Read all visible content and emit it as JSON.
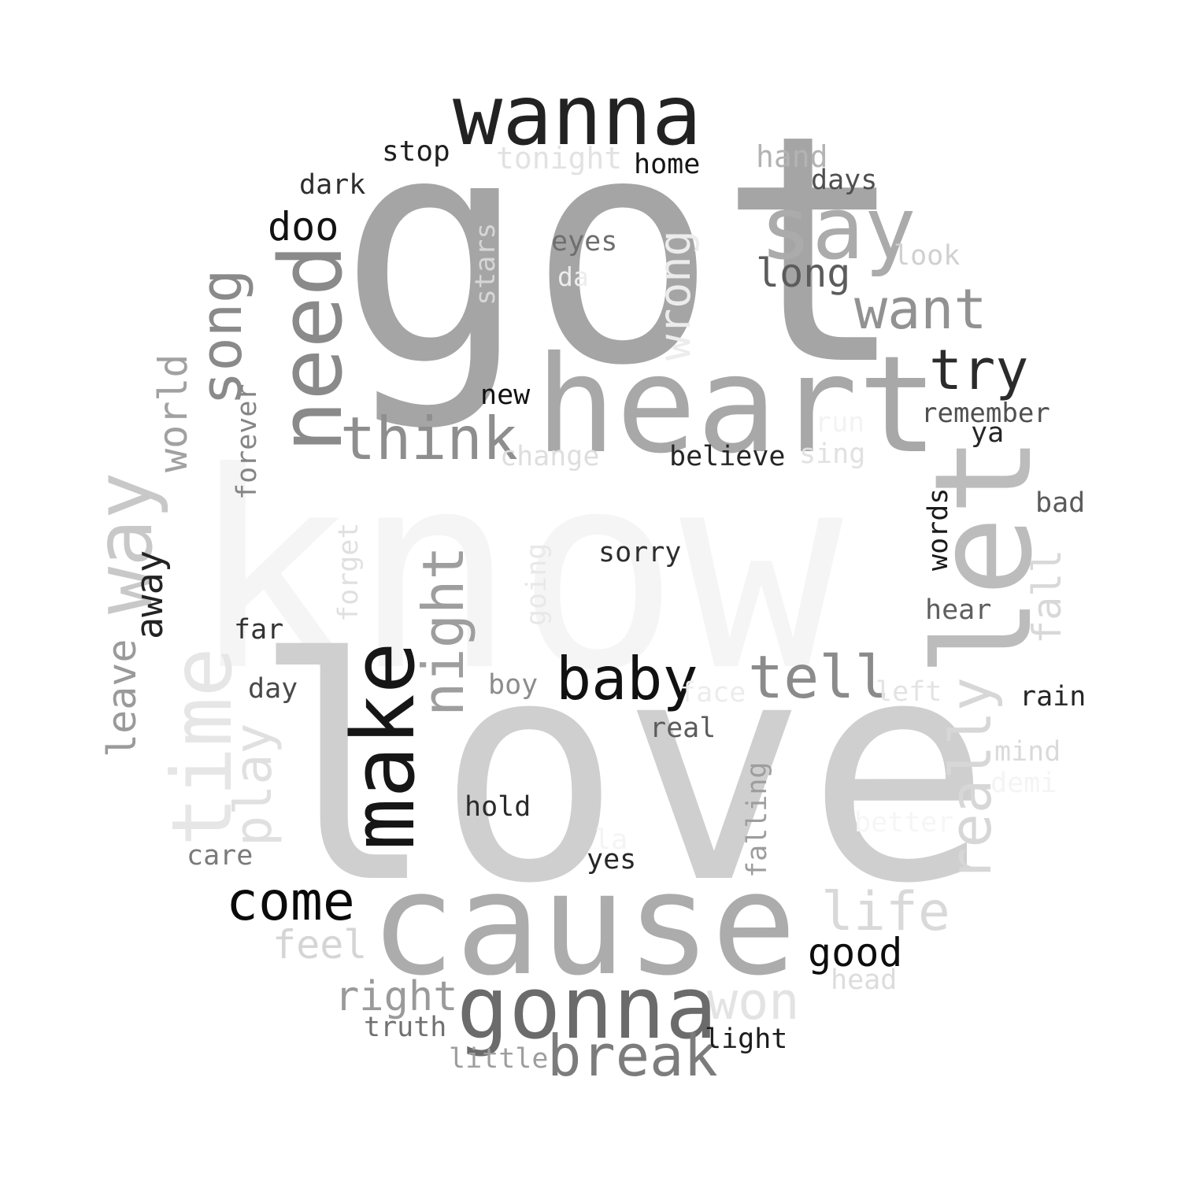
{
  "words": [
    {
      "text": "know",
      "color": "#f5f5f5",
      "vertical": false
    },
    {
      "text": "love",
      "color": "#cfcfcf",
      "vertical": false
    },
    {
      "text": "got",
      "color": "#a5a5a5",
      "vertical": false
    },
    {
      "text": "heart",
      "color": "#a8a8a8",
      "vertical": false
    },
    {
      "text": "cause",
      "color": "#acacac",
      "vertical": false
    },
    {
      "text": "let",
      "color": "#bcbcbc",
      "vertical": true
    },
    {
      "text": "wanna",
      "color": "#222222",
      "vertical": false
    },
    {
      "text": "say",
      "color": "#ababab",
      "vertical": false
    },
    {
      "text": "gonna",
      "color": "#6b6b6b",
      "vertical": false
    },
    {
      "text": "make",
      "color": "#161616",
      "vertical": true
    },
    {
      "text": "need",
      "color": "#8a8a8a",
      "vertical": true
    },
    {
      "text": "time",
      "color": "#e6e6e6",
      "vertical": true
    },
    {
      "text": "way",
      "color": "#c8c8c8",
      "vertical": true
    },
    {
      "text": "think",
      "color": "#8e8e8e",
      "vertical": false
    },
    {
      "text": "baby",
      "color": "#111111",
      "vertical": false
    },
    {
      "text": "tell",
      "color": "#8b8b8b",
      "vertical": false
    },
    {
      "text": "want",
      "color": "#929292",
      "vertical": false
    },
    {
      "text": "break",
      "color": "#7c7c7c",
      "vertical": false
    },
    {
      "text": "come",
      "color": "#0a0a0a",
      "vertical": false
    },
    {
      "text": "night",
      "color": "#9e9e9e",
      "vertical": true
    },
    {
      "text": "really",
      "color": "#d7d7d7",
      "vertical": true
    },
    {
      "text": "try",
      "color": "#2b2b2b",
      "vertical": false
    },
    {
      "text": "song",
      "color": "#8a8a8a",
      "vertical": true
    },
    {
      "text": "life",
      "color": "#d9d9d9",
      "vertical": false
    },
    {
      "text": "won",
      "color": "#e3e3e3",
      "vertical": false
    },
    {
      "text": "play",
      "color": "#e0e0e0",
      "vertical": true
    },
    {
      "text": "long",
      "color": "#5c5c5c",
      "vertical": false
    },
    {
      "text": "right",
      "color": "#9a9a9a",
      "vertical": false
    },
    {
      "text": "good",
      "color": "#0d0d0d",
      "vertical": false
    },
    {
      "text": "wrong",
      "color": "#ececec",
      "vertical": true
    },
    {
      "text": "feel",
      "color": "#d5d5d5",
      "vertical": false
    },
    {
      "text": "leave",
      "color": "#9a9a9a",
      "vertical": true
    },
    {
      "text": "world",
      "color": "#a1a1a1",
      "vertical": true
    },
    {
      "text": "doo",
      "color": "#121212",
      "vertical": false
    },
    {
      "text": "fall",
      "color": "#d8d8d8",
      "vertical": true
    },
    {
      "text": "away",
      "color": "#232323",
      "vertical": true
    },
    {
      "text": "remember",
      "color": "#505050",
      "vertical": false
    },
    {
      "text": "hand",
      "color": "#b3b3b3",
      "vertical": false
    },
    {
      "text": "tonight",
      "color": "#e2e2e2",
      "vertical": false
    },
    {
      "text": "stop",
      "color": "#1f1f1f",
      "vertical": false
    },
    {
      "text": "home",
      "color": "#151515",
      "vertical": false
    },
    {
      "text": "days",
      "color": "#4f4f4f",
      "vertical": false
    },
    {
      "text": "dark",
      "color": "#2e2e2e",
      "vertical": false
    },
    {
      "text": "eyes",
      "color": "#6e6e6e",
      "vertical": false
    },
    {
      "text": "look",
      "color": "#d0d0d0",
      "vertical": false
    },
    {
      "text": "da",
      "color": "#ededed",
      "vertical": false
    },
    {
      "text": "stars",
      "color": "#d6d6d6",
      "vertical": true
    },
    {
      "text": "new",
      "color": "#111111",
      "vertical": false
    },
    {
      "text": "run",
      "color": "#f3f3f3",
      "vertical": false
    },
    {
      "text": "ya",
      "color": "#262626",
      "vertical": false
    },
    {
      "text": "change",
      "color": "#dedede",
      "vertical": false
    },
    {
      "text": "believe",
      "color": "#252525",
      "vertical": false
    },
    {
      "text": "sing",
      "color": "#e1e1e1",
      "vertical": false
    },
    {
      "text": "forever",
      "color": "#858585",
      "vertical": true
    },
    {
      "text": "bad",
      "color": "#5a5a5a",
      "vertical": false
    },
    {
      "text": "words",
      "color": "#1a1a1a",
      "vertical": true
    },
    {
      "text": "forget",
      "color": "#e0e0e0",
      "vertical": true
    },
    {
      "text": "going",
      "color": "#e8e8e8",
      "vertical": true
    },
    {
      "text": "sorry",
      "color": "#2d2d2d",
      "vertical": false
    },
    {
      "text": "hear",
      "color": "#5e5e5e",
      "vertical": false
    },
    {
      "text": "far",
      "color": "#333333",
      "vertical": false
    },
    {
      "text": "boy",
      "color": "#8c8c8c",
      "vertical": false
    },
    {
      "text": "face",
      "color": "#ececec",
      "vertical": false
    },
    {
      "text": "left",
      "color": "#e3e3e3",
      "vertical": false
    },
    {
      "text": "rain",
      "color": "#262626",
      "vertical": false
    },
    {
      "text": "day",
      "color": "#494949",
      "vertical": false
    },
    {
      "text": "real",
      "color": "#5c5c5c",
      "vertical": false
    },
    {
      "text": "mind",
      "color": "#dadada",
      "vertical": false
    },
    {
      "text": "demi",
      "color": "#f4f4f4",
      "vertical": false
    },
    {
      "text": "falling",
      "color": "#9d9d9d",
      "vertical": true
    },
    {
      "text": "hold",
      "color": "#2b2b2b",
      "vertical": false
    },
    {
      "text": "better",
      "color": "#f6f6f6",
      "vertical": false
    },
    {
      "text": "la",
      "color": "#f4f4f4",
      "vertical": false
    },
    {
      "text": "care",
      "color": "#7a7a7a",
      "vertical": false
    },
    {
      "text": "yes",
      "color": "#262626",
      "vertical": false
    },
    {
      "text": "head",
      "color": "#dcdcdc",
      "vertical": false
    },
    {
      "text": "truth",
      "color": "#717171",
      "vertical": false
    },
    {
      "text": "light",
      "color": "#1c1c1c",
      "vertical": false
    },
    {
      "text": "little",
      "color": "#9e9e9e",
      "vertical": false
    }
  ]
}
